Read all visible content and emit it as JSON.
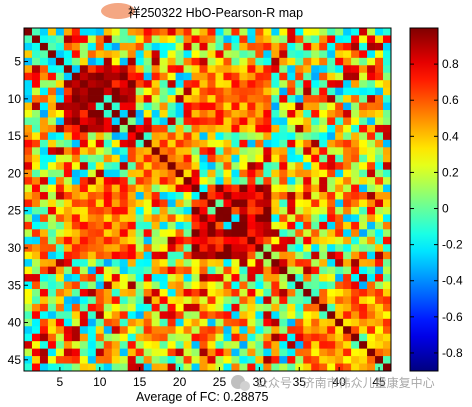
{
  "chart_data": {
    "type": "heatmap",
    "title": "祥250322 HbO-Pearson-R map",
    "title_prefix_redacted": true,
    "caption": "Average of FC: 0.28875",
    "n": 46,
    "x_ticks": [
      5,
      10,
      15,
      20,
      25,
      30,
      35,
      40,
      45
    ],
    "y_ticks": [
      5,
      10,
      15,
      20,
      25,
      30,
      35,
      40,
      45
    ],
    "colorbar": {
      "colormap": "jet",
      "range": [
        -0.9,
        1.0
      ],
      "ticks": [
        0.8,
        0.6,
        0.4,
        0.2,
        0,
        -0.2,
        -0.4,
        -0.6,
        -0.8
      ],
      "tick_labels": [
        "0.8",
        "0.6",
        "0.4",
        "0.2",
        "0",
        "-0.2",
        "-0.4",
        "-0.6",
        "-0.8"
      ]
    },
    "diagonal_value": 1.0,
    "blocks": [
      {
        "rows": [
          6,
          14
        ],
        "cols": [
          6,
          14
        ],
        "level": 0.85
      },
      {
        "rows": [
          22,
          31
        ],
        "cols": [
          22,
          31
        ],
        "level": 0.8
      },
      {
        "rows": [
          15,
          21
        ],
        "cols": [
          15,
          21
        ],
        "level": 0.55
      },
      {
        "rows": [
          36,
          46
        ],
        "cols": [
          36,
          46
        ],
        "level": 0.5
      },
      {
        "rows": [
          6,
          14
        ],
        "cols": [
          22,
          31
        ],
        "level": 0.55
      }
    ],
    "background_mean": 0.28875,
    "note": "46x46 symmetric correlation matrix; individual cell values not legible, rendered procedurally"
  },
  "watermark": {
    "text": "公众号 · 济南市伟众儿童康复中心"
  },
  "colors": {
    "axis": "#000000",
    "background": "#ffffff"
  }
}
